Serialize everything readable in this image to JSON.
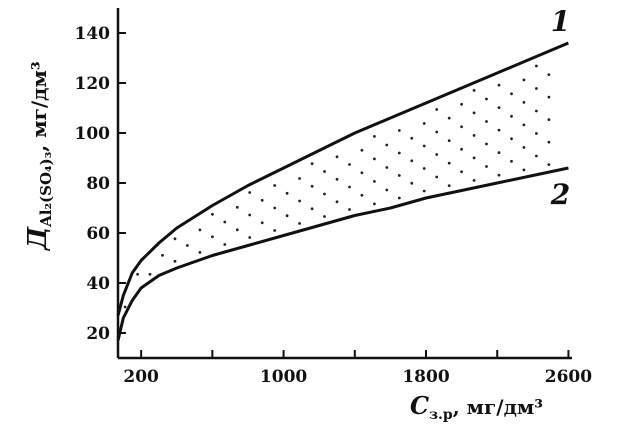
{
  "chart_data": {
    "type": "line",
    "title": "",
    "xlabel": "C",
    "xlabel_sub": "з.р",
    "xlabel_units": ", мг/дм³",
    "ylabel": "Д",
    "ylabel_sub": "Al₂(SO₄)₃",
    "ylabel_units": ", мг/дм³",
    "xlim": [
      70,
      2620
    ],
    "ylim": [
      10,
      150
    ],
    "x_ticks": [
      200,
      1000,
      1800,
      2600
    ],
    "x_minor_ticks": [
      600,
      1400,
      2200
    ],
    "y_ticks": [
      20,
      40,
      60,
      80,
      100,
      120,
      140
    ],
    "grid": false,
    "shaded_region_between": [
      "1",
      "2"
    ],
    "series": [
      {
        "name": "1",
        "x": [
          70,
          100,
          150,
          200,
          300,
          400,
          600,
          800,
          1000,
          1200,
          1400,
          1600,
          1800,
          2000,
          2200,
          2400,
          2600
        ],
        "values": [
          27,
          35,
          44,
          49,
          56,
          62,
          71,
          79,
          86,
          93,
          100,
          106,
          112,
          118,
          124,
          130,
          136
        ]
      },
      {
        "name": "2",
        "x": [
          70,
          100,
          150,
          200,
          300,
          400,
          600,
          800,
          1000,
          1200,
          1400,
          1600,
          1800,
          2000,
          2200,
          2400,
          2600
        ],
        "values": [
          17,
          26,
          33,
          38,
          43,
          46,
          51,
          55,
          59,
          63,
          67,
          70,
          74,
          77,
          80,
          83,
          86
        ]
      }
    ]
  }
}
